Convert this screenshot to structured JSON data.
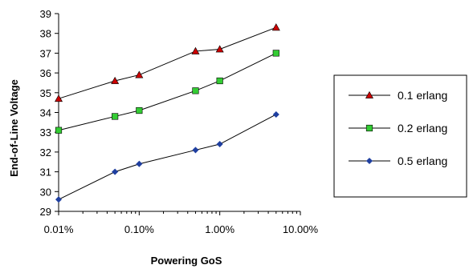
{
  "chart_data": {
    "type": "line",
    "xlabel": "Powering GoS",
    "ylabel": "End-of-Line Voltage",
    "x_scale": "log",
    "xlim": [
      0.01,
      10
    ],
    "ylim": [
      29,
      39
    ],
    "x_ticks": [
      0.01,
      0.1,
      1,
      10
    ],
    "x_tick_labels": [
      "0.01%",
      "0.10%",
      "1.00%",
      "10.00%"
    ],
    "y_ticks": [
      29,
      30,
      31,
      32,
      33,
      34,
      35,
      36,
      37,
      38,
      39
    ],
    "y_tick_labels": [
      "29",
      "30",
      "31",
      "32",
      "33",
      "34",
      "35",
      "36",
      "37",
      "38",
      "39"
    ],
    "grid": false,
    "legend_position": "right",
    "x": [
      0.01,
      0.05,
      0.1,
      0.5,
      1,
      5
    ],
    "series": [
      {
        "name": "0.1 erlang",
        "color": "#cc0000",
        "marker": "triangle",
        "values": [
          34.7,
          35.6,
          35.9,
          37.1,
          37.2,
          38.3
        ]
      },
      {
        "name": "0.2 erlang",
        "color": "#33cc33",
        "marker": "square",
        "values": [
          33.1,
          33.8,
          34.1,
          35.1,
          35.6,
          37.0
        ]
      },
      {
        "name": "0.5 erlang",
        "color": "#1f3fa0",
        "marker": "diamond",
        "values": [
          29.6,
          31.0,
          31.4,
          32.1,
          32.4,
          33.9
        ]
      }
    ]
  }
}
